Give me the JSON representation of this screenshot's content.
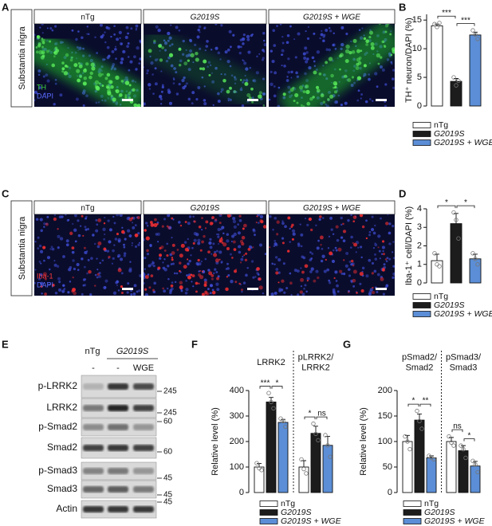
{
  "figure": {
    "A": {
      "label": "A",
      "row_label": "Substantia nigra",
      "columns": [
        "nTg",
        "G2019S",
        "G2019S + WGE"
      ],
      "stains": [
        "TH",
        "DAPI"
      ]
    },
    "C": {
      "label": "C",
      "row_label": "Substantia nigra",
      "columns": [
        "nTg",
        "G2019S",
        "G2019S + WGE"
      ],
      "stains": [
        "Iba-1",
        "DAPI"
      ]
    },
    "E": {
      "label": "E",
      "groups": [
        "nTg",
        "G2019S"
      ],
      "lanes": [
        "-",
        "-",
        "WGE"
      ],
      "rows": [
        {
          "name": "p-LRRK2",
          "markers": [
            245
          ]
        },
        {
          "name": "LRRK2",
          "markers": [
            245
          ]
        },
        {
          "name": "p-Smad2",
          "markers": [
            60
          ]
        },
        {
          "name": "Smad2",
          "markers": [
            60
          ]
        },
        {
          "name": "p-Smad3",
          "markers": [
            45
          ]
        },
        {
          "name": "Smad3",
          "markers": [
            45
          ]
        },
        {
          "name": "Actin",
          "markers": [
            45
          ]
        }
      ]
    }
  },
  "chart_data": [
    {
      "panel": "B",
      "type": "bar",
      "ylabel": "TH⁺ neuron/DAPI (%)",
      "ylim": [
        0,
        16
      ],
      "yticks": [
        0,
        5,
        10,
        15
      ],
      "series": [
        {
          "name": "nTg",
          "color": "#ffffff",
          "values": [
            14
          ],
          "errors": [
            0.3
          ],
          "points": [
            [
              14.3,
              13.8,
              14.5
            ]
          ]
        },
        {
          "name": "G2019S",
          "color": "#1c1c1c",
          "values": [
            4.3
          ],
          "errors": [
            0.5
          ],
          "points": [
            [
              5.0,
              3.6,
              4.4
            ]
          ]
        },
        {
          "name": "G2019S + WGE",
          "color": "#5b8ed6",
          "values": [
            12.4
          ],
          "errors": [
            0.5
          ],
          "points": [
            [
              13.2,
              12.5,
              11.7
            ]
          ]
        }
      ],
      "significance": [
        [
          "***",
          "***"
        ]
      ]
    },
    {
      "panel": "D",
      "type": "bar",
      "ylabel": "Iba-1⁺ cell/DAPI (%)",
      "ylim": [
        0,
        4
      ],
      "yticks": [
        0,
        1,
        2,
        3,
        4
      ],
      "series": [
        {
          "name": "nTg",
          "color": "#ffffff",
          "values": [
            1.2
          ],
          "errors": [
            0.35
          ],
          "points": [
            [
              1.6,
              1.0,
              0.9
            ]
          ]
        },
        {
          "name": "G2019S",
          "color": "#1c1c1c",
          "values": [
            3.2
          ],
          "errors": [
            0.55
          ],
          "points": [
            [
              3.8,
              3.4,
              2.4
            ]
          ]
        },
        {
          "name": "G2019S + WGE",
          "color": "#5b8ed6",
          "values": [
            1.3
          ],
          "errors": [
            0.25
          ],
          "points": [
            [
              1.6,
              1.3,
              1.0
            ]
          ]
        }
      ],
      "significance": [
        [
          "*",
          "*"
        ]
      ]
    },
    {
      "panel": "F",
      "type": "bar",
      "categories": [
        "LRRK2",
        "pLRRK2/\nLRRK2"
      ],
      "ylabel": "Relative level (%)",
      "ylim": [
        0,
        400
      ],
      "yticks": [
        0,
        100,
        200,
        300,
        400
      ],
      "series": [
        {
          "name": "nTg",
          "color": "#ffffff",
          "values": [
            100,
            100
          ],
          "errors": [
            14,
            25
          ],
          "points": [
            [
              115,
              95,
              88
            ],
            [
              130,
              92,
              75
            ]
          ]
        },
        {
          "name": "G2019S",
          "color": "#1c1c1c",
          "values": [
            355,
            232
          ],
          "errors": [
            18,
            28
          ],
          "points": [
            [
              390,
              355,
              330
            ],
            [
              270,
              230,
              205
            ]
          ]
        },
        {
          "name": "G2019S + WGE",
          "color": "#5b8ed6",
          "values": [
            275,
            185
          ],
          "errors": [
            12,
            35
          ],
          "points": [
            [
              290,
              280,
              258
            ],
            [
              225,
              185,
              140
            ]
          ]
        }
      ],
      "significance": [
        [
          "***",
          "*"
        ],
        [
          "*",
          "ns"
        ]
      ]
    },
    {
      "panel": "G",
      "type": "bar",
      "categories": [
        "pSmad2/\nSmad2",
        "pSmad3/\nSmad3"
      ],
      "ylabel": "Relative level (%)",
      "ylim": [
        0,
        200
      ],
      "yticks": [
        0,
        50,
        100,
        150,
        200
      ],
      "series": [
        {
          "name": "nTg",
          "color": "#ffffff",
          "values": [
            100,
            100
          ],
          "errors": [
            12,
            8
          ],
          "points": [
            [
              110,
              100,
              85
            ],
            [
              110,
              98,
              92
            ]
          ]
        },
        {
          "name": "G2019S",
          "color": "#1c1c1c",
          "values": [
            142,
            82
          ],
          "errors": [
            12,
            10
          ],
          "points": [
            [
              160,
              140,
              125
            ],
            [
              92,
              85,
              68
            ]
          ]
        },
        {
          "name": "G2019S + WGE",
          "color": "#5b8ed6",
          "values": [
            68,
            52
          ],
          "errors": [
            4,
            9
          ],
          "points": [
            [
              72,
              68,
              65
            ],
            [
              62,
              55,
              40
            ]
          ]
        }
      ],
      "significance": [
        [
          "*",
          "**"
        ],
        [
          "ns",
          "*"
        ]
      ]
    }
  ]
}
